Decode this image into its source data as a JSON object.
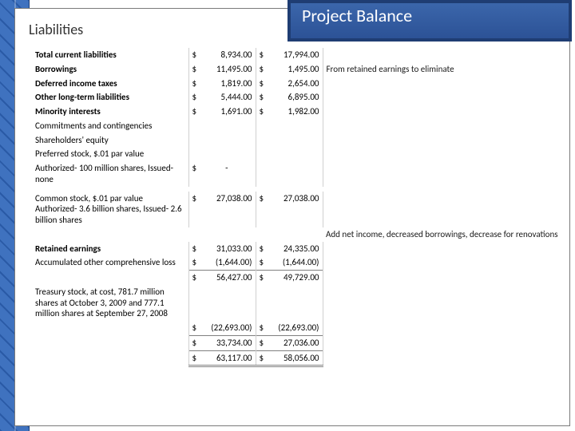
{
  "header": {
    "section_label": "Liabilities",
    "title_box": "Project Balance"
  },
  "currency_symbol": "$",
  "colors": {
    "stripe_dark": "#2a5aa6",
    "stripe_light": "#3f72bf",
    "title_border": "#1f3d73",
    "panel_border": "#7a7a7a",
    "rule": "#808080"
  },
  "rows": [
    {
      "label": "Total current liabilities",
      "bold": true,
      "indent": 1,
      "v1": "8,934.00",
      "v2": "17,994.00"
    },
    {
      "label": "Borrowings",
      "bold": true,
      "v1": "11,495.00",
      "v2": "1,495.00",
      "note": "From retained earnings to eliminate"
    },
    {
      "label": "Deferred income taxes",
      "bold": true,
      "v1": "1,819.00",
      "v2": "2,654.00"
    },
    {
      "label": "Other long-term liabilities",
      "bold": true,
      "v1": "5,444.00",
      "v2": "6,895.00"
    },
    {
      "label": "Minority interests",
      "bold": true,
      "v1": "1,691.00",
      "v2": "1,982.00"
    },
    {
      "label": "Commitments and contingencies"
    },
    {
      "label": "Shareholders' equity"
    },
    {
      "label": "Preferred stock, $.01 par value",
      "indent": 1
    },
    {
      "label": "Authorized- 100 million shares, Issued- none",
      "v1": "-",
      "v1_align": "center"
    },
    {
      "spacer": true
    },
    {
      "label": "Common stock, $.01 par value Authorized- 3.6 billion shares, Issued- 2.6 billion shares",
      "indent": 1,
      "v1": "27,038.00",
      "v2": "27,038.00"
    },
    {
      "note_row": true,
      "note": "Add net income, decreased borrowings, decrease for renovations"
    },
    {
      "label": "Retained earnings",
      "bold": true,
      "indent": 1,
      "v1": "31,033.00",
      "v2": "24,335.00"
    },
    {
      "label": "Accumulated other comprehensive loss",
      "indent": 1,
      "v1": "(1,644.00)",
      "v2": "(1,644.00)"
    },
    {
      "subtotal": true,
      "v1": "56,427.00",
      "v2": "49,729.00"
    },
    {
      "label": "Treasury stock, at cost, 781.7 million shares at October 3, 2009 and 777.1 million shares at September 27, 2008"
    },
    {
      "v1": "(22,693.00)",
      "v2": "(22,693.00)"
    },
    {
      "subtotal": true,
      "v1": "33,734.00",
      "v2": "27,036.00"
    },
    {
      "grand": true,
      "v1": "63,117.00",
      "v2": "58,056.00"
    }
  ]
}
